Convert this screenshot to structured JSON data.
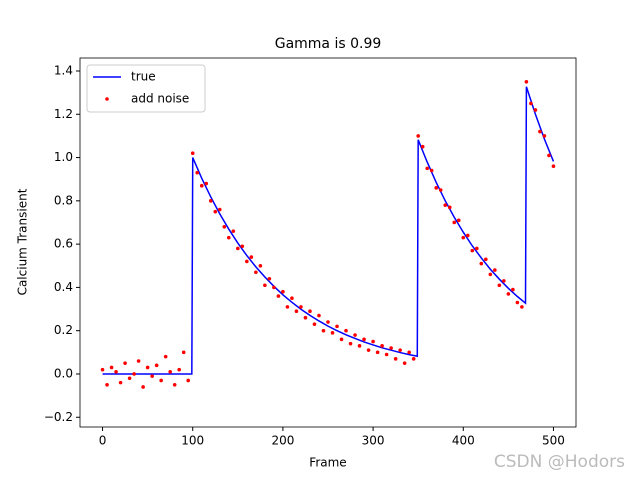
{
  "chart_data": {
    "type": "line",
    "title": "Gamma is 0.99",
    "xlabel": "Frame",
    "ylabel": "Calcium Transient",
    "xlim": [
      -25,
      525
    ],
    "ylim": [
      -0.245,
      1.46
    ],
    "xticks": [
      0,
      100,
      200,
      300,
      400,
      500
    ],
    "yticks": [
      {
        "value": -0.2,
        "label": "−0.2"
      },
      {
        "value": 0,
        "label": "0.0"
      },
      {
        "value": 0.2,
        "label": "0.2"
      },
      {
        "value": 0.4,
        "label": "0.4"
      },
      {
        "value": 0.6,
        "label": "0.6"
      },
      {
        "value": 0.8,
        "label": "0.8"
      },
      {
        "value": 1.0,
        "label": "1.0"
      },
      {
        "value": 1.2,
        "label": "1.2"
      },
      {
        "value": 1.4,
        "label": "1.4"
      }
    ],
    "legend": "upper left",
    "watermark": "CSDN @Hodors",
    "series": [
      {
        "name": "true",
        "type": "line",
        "color": "#0000ff",
        "x": [
          0,
          99,
          100,
          110,
          120,
          130,
          140,
          150,
          160,
          170,
          180,
          190,
          200,
          210,
          220,
          230,
          240,
          250,
          260,
          270,
          280,
          290,
          300,
          310,
          320,
          330,
          340,
          349,
          350,
          360,
          370,
          380,
          390,
          400,
          410,
          420,
          430,
          440,
          450,
          460,
          469,
          470,
          480,
          490,
          500
        ],
        "values": [
          0,
          0,
          1.0,
          0.904,
          0.818,
          0.74,
          0.669,
          0.605,
          0.547,
          0.495,
          0.448,
          0.405,
          0.366,
          0.331,
          0.299,
          0.271,
          0.245,
          0.221,
          0.2,
          0.181,
          0.164,
          0.148,
          0.134,
          0.121,
          0.11,
          0.099,
          0.0896,
          0.082,
          1.082,
          0.979,
          0.885,
          0.8,
          0.724,
          0.655,
          0.592,
          0.536,
          0.484,
          0.438,
          0.396,
          0.358,
          0.327,
          1.327,
          1.2,
          1.085,
          0.982
        ]
      },
      {
        "name": "add noise",
        "type": "scatter",
        "color": "#ff0000",
        "x": [
          0,
          5,
          10,
          15,
          20,
          25,
          30,
          35,
          40,
          45,
          50,
          55,
          60,
          65,
          70,
          75,
          80,
          85,
          90,
          95,
          100,
          105,
          110,
          115,
          120,
          125,
          130,
          135,
          140,
          145,
          150,
          155,
          160,
          165,
          170,
          175,
          180,
          185,
          190,
          195,
          200,
          205,
          210,
          215,
          220,
          225,
          230,
          235,
          240,
          245,
          250,
          255,
          260,
          265,
          270,
          275,
          280,
          285,
          290,
          295,
          300,
          305,
          310,
          315,
          320,
          325,
          330,
          335,
          340,
          345,
          350,
          355,
          360,
          365,
          370,
          375,
          380,
          385,
          390,
          395,
          400,
          405,
          410,
          415,
          420,
          425,
          430,
          435,
          440,
          445,
          450,
          455,
          460,
          465,
          470,
          475,
          480,
          485,
          490,
          495,
          500
        ],
        "values": [
          0.02,
          -0.05,
          0.03,
          0.01,
          -0.04,
          0.05,
          -0.02,
          0.0,
          0.06,
          -0.06,
          0.03,
          -0.01,
          0.04,
          -0.03,
          0.08,
          0.01,
          -0.05,
          0.02,
          0.1,
          -0.03,
          1.02,
          0.93,
          0.87,
          0.88,
          0.8,
          0.75,
          0.76,
          0.68,
          0.63,
          0.66,
          0.58,
          0.59,
          0.52,
          0.54,
          0.47,
          0.5,
          0.41,
          0.44,
          0.4,
          0.36,
          0.38,
          0.31,
          0.35,
          0.29,
          0.31,
          0.26,
          0.29,
          0.23,
          0.27,
          0.2,
          0.24,
          0.19,
          0.22,
          0.16,
          0.2,
          0.14,
          0.18,
          0.13,
          0.16,
          0.11,
          0.15,
          0.1,
          0.13,
          0.09,
          0.12,
          0.07,
          0.11,
          0.05,
          0.1,
          0.07,
          1.1,
          1.05,
          0.95,
          0.94,
          0.86,
          0.85,
          0.78,
          0.77,
          0.7,
          0.71,
          0.63,
          0.64,
          0.57,
          0.58,
          0.51,
          0.53,
          0.46,
          0.48,
          0.41,
          0.43,
          0.37,
          0.39,
          0.33,
          0.31,
          1.35,
          1.25,
          1.22,
          1.12,
          1.1,
          1.01,
          0.96
        ]
      }
    ]
  }
}
